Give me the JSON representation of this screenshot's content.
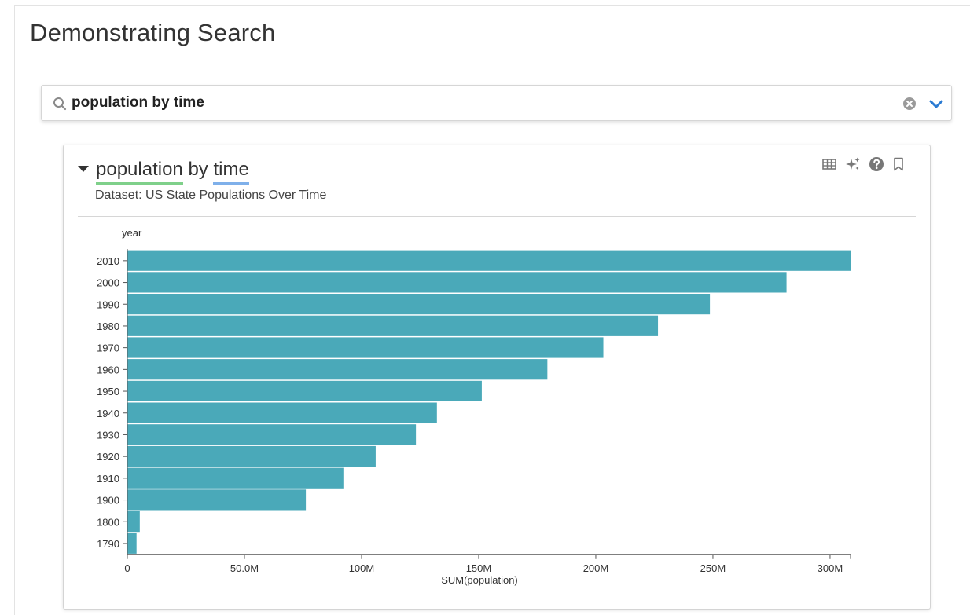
{
  "page": {
    "title": "Demonstrating Search"
  },
  "search": {
    "value": "population by time",
    "placeholder": ""
  },
  "icons": {
    "search": "search-icon",
    "clear": "clear-icon",
    "expand": "chevron-down-icon",
    "collapse": "caret-down-icon",
    "table": "table-icon",
    "insights": "sparkle-icon",
    "help": "help-icon",
    "bookmark": "bookmark-icon"
  },
  "card": {
    "query": {
      "measure": "population",
      "joiner": "by",
      "dimension": "time"
    },
    "dataset": "Dataset: US State Populations Over Time"
  },
  "colors": {
    "bar": "#4aa9b9",
    "measure_underline": "#7fd08a",
    "dimension_underline": "#7fb0ea",
    "chevron": "#2b7bd3"
  },
  "chart_data": {
    "type": "bar",
    "orientation": "horizontal",
    "ylabel": "year",
    "xlabel": "SUM(population)",
    "categories": [
      "2010",
      "2000",
      "1990",
      "1980",
      "1970",
      "1960",
      "1950",
      "1940",
      "1930",
      "1920",
      "1910",
      "1900",
      "1800",
      "1790"
    ],
    "values": [
      308745538,
      281421906,
      248709873,
      226545805,
      203211926,
      179323175,
      151325798,
      132164569,
      123202624,
      106021537,
      92228496,
      76212168,
      5308483,
      3929214
    ],
    "xlim": [
      0,
      308745538
    ],
    "xticks": [
      0,
      50000000,
      100000000,
      150000000,
      200000000,
      250000000,
      300000000
    ],
    "xtick_labels": [
      "0",
      "50.0M",
      "100M",
      "150M",
      "200M",
      "250M",
      "300M"
    ],
    "grid": false,
    "legend": "none"
  }
}
